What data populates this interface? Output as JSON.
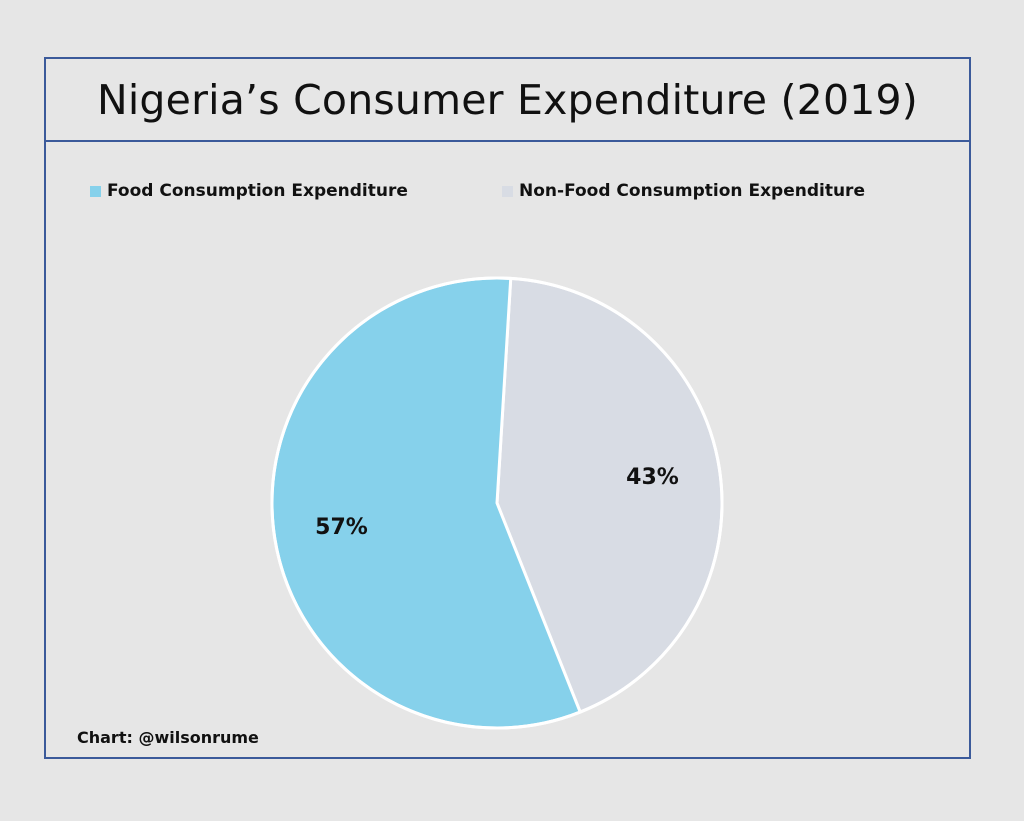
{
  "chart_data": {
    "type": "pie",
    "title": "Nigeria’s Consumer Expenditure (2019)",
    "categories": [
      "Food Consumption Expenditure",
      "Non-Food Consumption Expenditure"
    ],
    "values": [
      57,
      43
    ],
    "data_labels": [
      "57%",
      "43%"
    ],
    "colors": [
      "#86d1eb",
      "#d8dce4"
    ],
    "legend_position": "top"
  },
  "credit": "Chart: @wilsonrume"
}
